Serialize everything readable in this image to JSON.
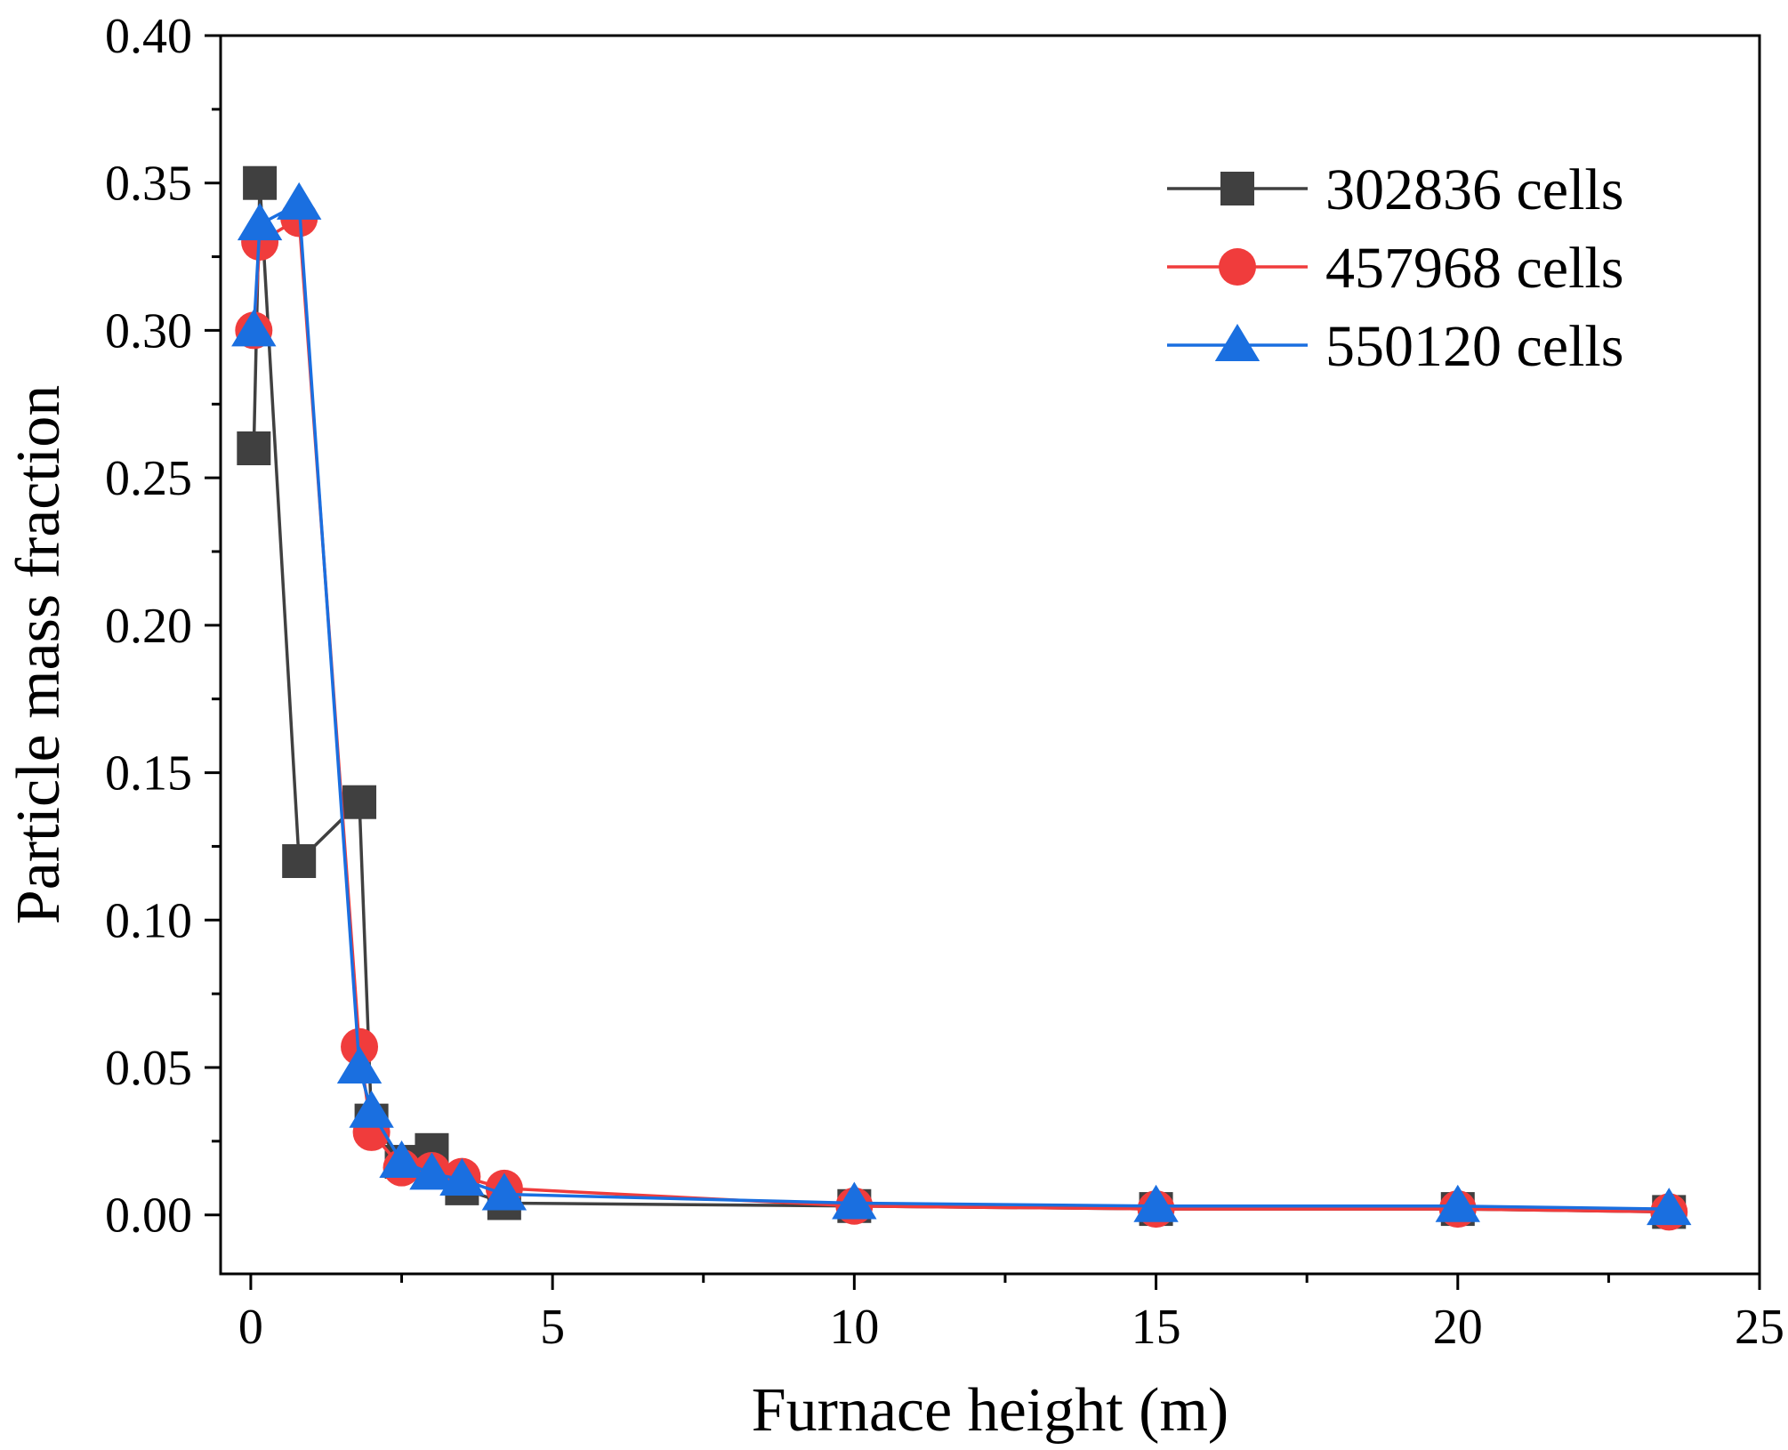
{
  "chart_data": {
    "type": "line",
    "title": "",
    "xlabel": "Furnace height (m)",
    "ylabel": "Particle mass fraction",
    "xlim": [
      -0.5,
      25
    ],
    "ylim": [
      -0.02,
      0.4
    ],
    "xticks": [
      0,
      5,
      10,
      15,
      20,
      25
    ],
    "xtick_labels": [
      "0",
      "5",
      "10",
      "15",
      "20",
      "25"
    ],
    "yticks": [
      0,
      0.05,
      0.1,
      0.15,
      0.2,
      0.25,
      0.3,
      0.35,
      0.4
    ],
    "ytick_labels": [
      "0.00",
      "0.05",
      "0.10",
      "0.15",
      "0.20",
      "0.25",
      "0.30",
      "0.35",
      "0.40"
    ],
    "grid": false,
    "legend_position": "top-right",
    "series": [
      {
        "name": "302836 cells",
        "color": "#404040",
        "marker": "square",
        "x": [
          0.05,
          0.15,
          0.8,
          1.8,
          2.0,
          2.5,
          3.0,
          3.5,
          4.2,
          10,
          15,
          20,
          23.5
        ],
        "y": [
          0.26,
          0.35,
          0.12,
          0.14,
          0.032,
          0.018,
          0.022,
          0.009,
          0.004,
          0.003,
          0.002,
          0.002,
          0.001
        ]
      },
      {
        "name": "457968 cells",
        "color": "#f03c3c",
        "marker": "circle",
        "x": [
          0.05,
          0.15,
          0.8,
          1.8,
          2.0,
          2.5,
          3.0,
          3.5,
          4.2,
          10,
          15,
          20,
          23.5
        ],
        "y": [
          0.3,
          0.33,
          0.338,
          0.057,
          0.028,
          0.016,
          0.015,
          0.013,
          0.009,
          0.003,
          0.002,
          0.002,
          0.001
        ]
      },
      {
        "name": "550120 cells",
        "color": "#1a6fe0",
        "marker": "triangle",
        "x": [
          0.05,
          0.15,
          0.8,
          1.8,
          2.0,
          2.5,
          3.0,
          3.5,
          4.2,
          10,
          15,
          20,
          23.5
        ],
        "y": [
          0.3,
          0.336,
          0.343,
          0.05,
          0.035,
          0.018,
          0.014,
          0.012,
          0.007,
          0.004,
          0.003,
          0.003,
          0.002
        ]
      }
    ]
  }
}
